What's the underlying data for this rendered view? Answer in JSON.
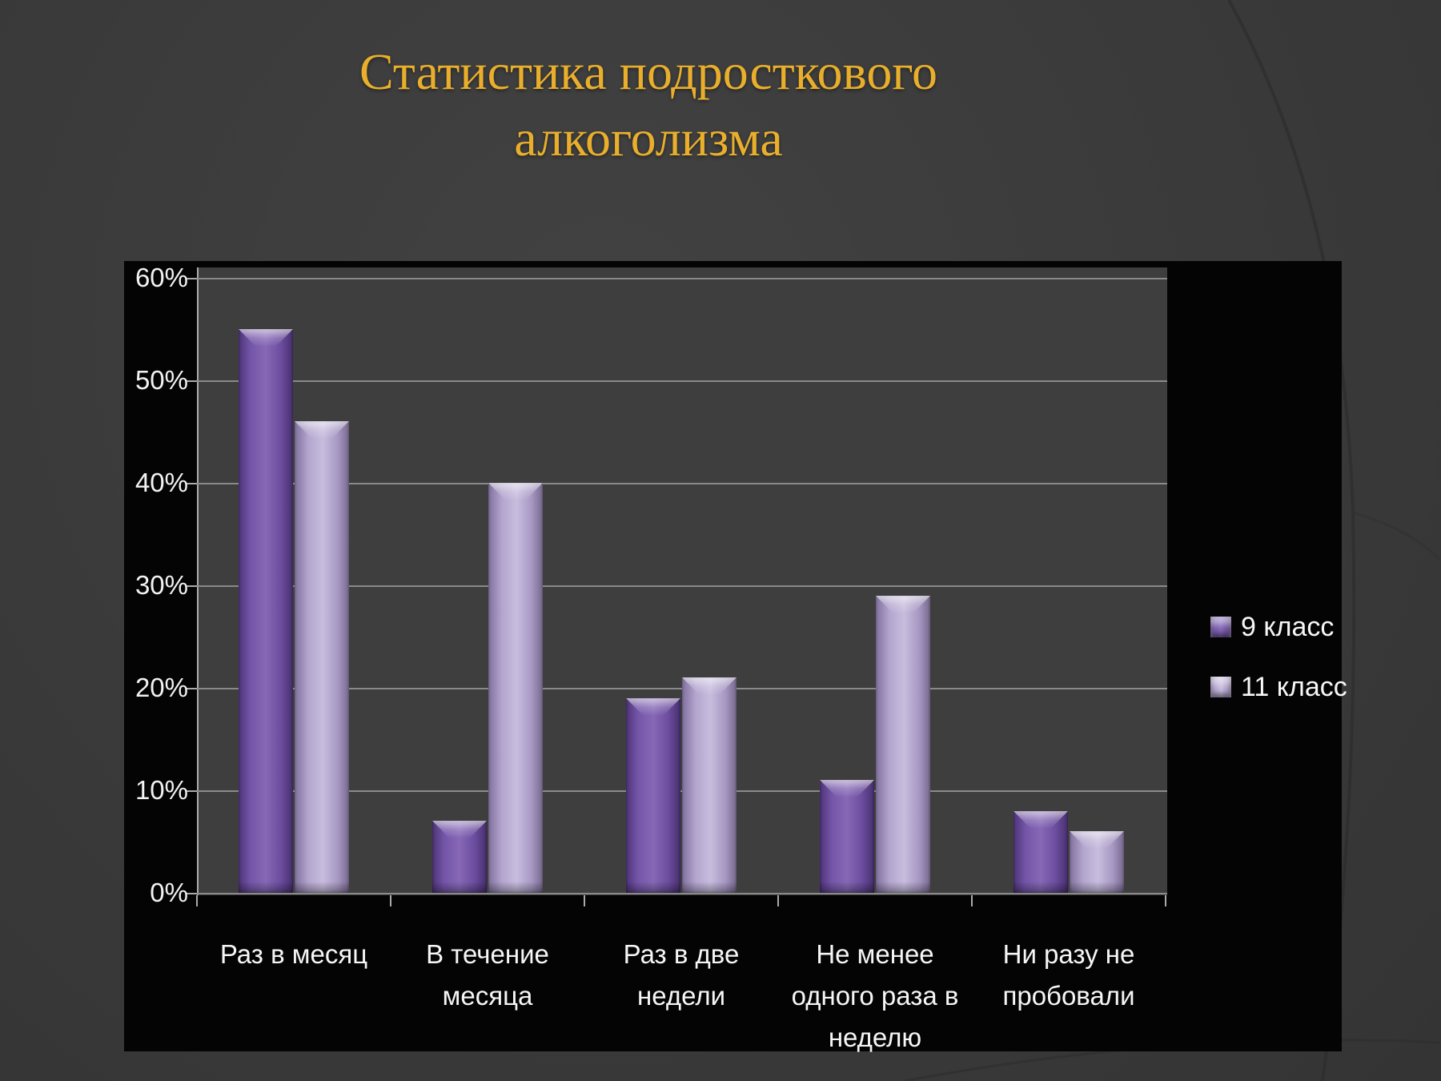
{
  "slide": {
    "title_line1": "Статистика подросткового",
    "title_line2": "алкоголизма"
  },
  "chart_data": {
    "type": "bar",
    "title": "Статистика подросткового алкоголизма",
    "categories": [
      "Раз в месяц",
      "В течение месяца",
      "Раз в две недели",
      "Не менее одного раза в неделю",
      "Ни разу не пробовали"
    ],
    "category_lines": [
      [
        "Раз в месяц"
      ],
      [
        "В течение",
        "месяца"
      ],
      [
        "Раз в две",
        "недели"
      ],
      [
        "Не менее",
        "одного раза в",
        "неделю"
      ],
      [
        "Ни разу не",
        "пробовали"
      ]
    ],
    "series": [
      {
        "name": "9 класс",
        "values": [
          55,
          7,
          19,
          11,
          8
        ]
      },
      {
        "name": "11 класс",
        "values": [
          46,
          40,
          21,
          29,
          6
        ]
      }
    ],
    "unit": "%",
    "y_tick_labels": [
      "60%",
      "50%",
      "40%",
      "30%",
      "20%",
      "10%",
      "0%"
    ],
    "ylim": [
      0,
      60
    ],
    "grid": true,
    "legend_position": "right"
  },
  "colors": {
    "slide_background": "#3a3a3a",
    "chart_background": "#040404",
    "plot_background": "#3f3e3f",
    "gridline": "#8a8a8a",
    "axis": "#ababab",
    "text": "#f2f2f2",
    "title": "#e9af2c",
    "series_9_klass": "#7a58ae",
    "series_11_klass": "#b7a9d2"
  }
}
